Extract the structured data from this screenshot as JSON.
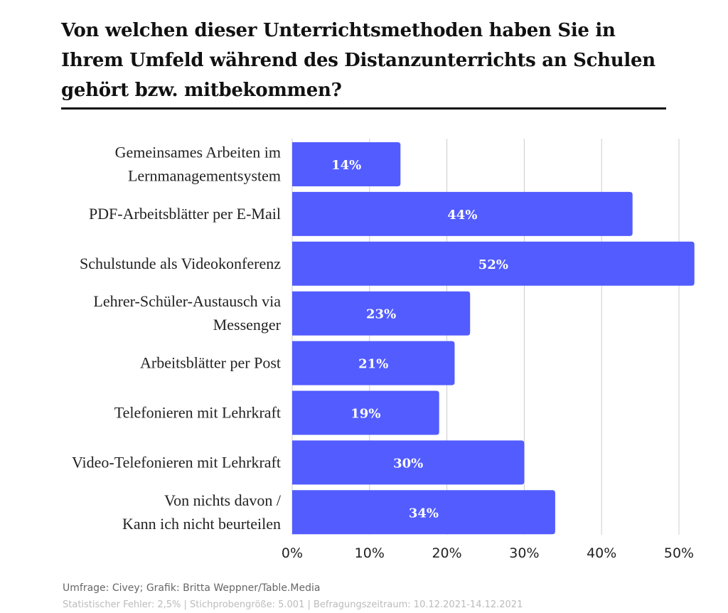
{
  "chart_data": {
    "type": "bar",
    "orientation": "horizontal",
    "title": "Von welchen dieser Unterrichtsmethoden haben Sie in Ihrem Umfeld während des Distanzunterrichts an Schulen gehört bzw. mitbekommen?",
    "categories": [
      [
        "Gemeinsames Arbeiten im",
        "Lernmanagementsystem"
      ],
      [
        "PDF-Arbeitsblätter per E-Mail"
      ],
      [
        "Schulstunde als Videokonferenz"
      ],
      [
        "Lehrer-Schüler-Austausch via",
        "Messenger"
      ],
      [
        "Arbeitsblätter per Post"
      ],
      [
        "Telefonieren mit Lehrkraft"
      ],
      [
        "Video-Telefonieren mit Lehrkraft"
      ],
      [
        "Von nichts davon /",
        "Kann ich nicht beurteilen"
      ]
    ],
    "values": [
      14,
      44,
      52,
      23,
      21,
      19,
      30,
      34
    ],
    "data_labels": [
      "14%",
      "44%",
      "52%",
      "23%",
      "21%",
      "19%",
      "30%",
      "34%"
    ],
    "xlim": [
      0,
      52
    ],
    "ticks": [
      0,
      10,
      20,
      30,
      40,
      50
    ],
    "tick_labels": [
      "0%",
      "10%",
      "20%",
      "30%",
      "40%",
      "50%"
    ],
    "grid": true,
    "bar_color": "#525CFF"
  },
  "footer": {
    "source": "Umfrage: Civey; Grafik: Britta Weppner/Table.Media",
    "note": "Statistischer Fehler: 2,5% | Stichprobengröße: 5.001 | Befragungszeitraum: 10.12.2021-14.12.2021"
  }
}
